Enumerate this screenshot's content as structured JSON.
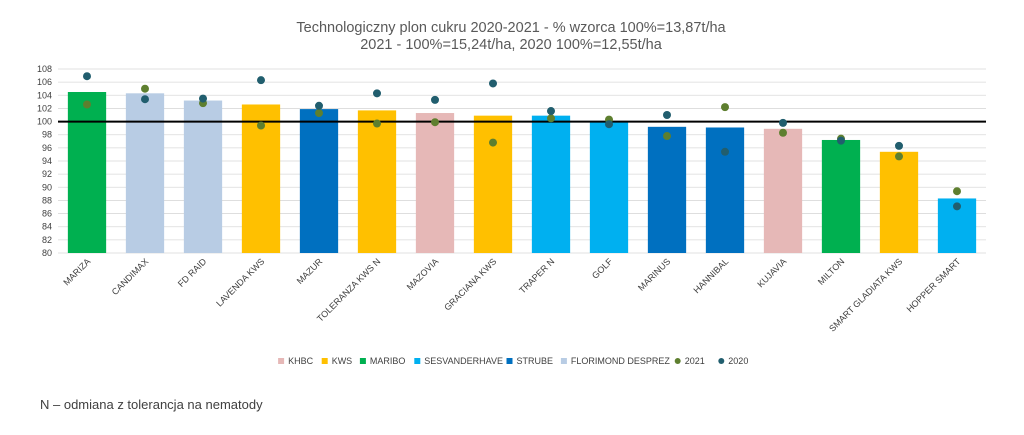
{
  "chart_data": {
    "type": "bar",
    "title_lines": [
      "Technologiczny plon cukru 2020-2021 - % wzorca 100%=13,87t/ha",
      "2021 - 100%=15,24t/ha, 2020 100%=12,55t/ha"
    ],
    "ylim": [
      80,
      108
    ],
    "yticks": [
      80,
      82,
      84,
      86,
      88,
      90,
      92,
      94,
      96,
      98,
      100,
      102,
      104,
      106,
      108
    ],
    "grid": true,
    "reference_line": 100,
    "categories": [
      "MARIZA",
      "CANDIMAX",
      "FD RAID",
      "LAVENDA KWS",
      "MAZUR",
      "TOLERANZA KWS N",
      "MAZOVIA",
      "GRACIANA KWS",
      "TRAPER N",
      "GOLF",
      "MARINUS",
      "HANNIBAL",
      "KUJAVIA",
      "MILTON",
      "SMART GLADIATA KWS",
      "HOPPER SMART"
    ],
    "values": [
      104.5,
      104.3,
      103.2,
      102.6,
      101.9,
      101.7,
      101.3,
      100.9,
      100.9,
      100.1,
      99.2,
      99.1,
      98.9,
      97.2,
      95.4,
      88.3
    ],
    "bar_groups": [
      "MARIBO",
      "FLORIMOND DESPREZ",
      "FLORIMOND DESPREZ",
      "KWS",
      "STRUBE",
      "KWS",
      "KHBC",
      "KWS",
      "SESVANDERHAVE",
      "SESVANDERHAVE",
      "STRUBE",
      "STRUBE",
      "KHBC",
      "MARIBO",
      "KWS",
      "SESVANDERHAVE"
    ],
    "series": [
      {
        "name": "2021",
        "values": [
          102.6,
          105.0,
          102.8,
          99.4,
          101.3,
          99.7,
          99.9,
          96.8,
          100.5,
          100.3,
          97.8,
          102.2,
          98.3,
          97.4,
          94.7,
          89.4
        ]
      },
      {
        "name": "2020",
        "values": [
          106.9,
          103.4,
          103.5,
          106.3,
          102.4,
          104.3,
          103.3,
          105.8,
          101.6,
          99.6,
          101.0,
          95.4,
          99.8,
          97.1,
          96.3,
          87.1
        ]
      }
    ],
    "legend": {
      "position": "bottom",
      "entries": [
        {
          "name": "KHBC",
          "kind": "bar",
          "color": "#E6B8B7"
        },
        {
          "name": "KWS",
          "kind": "bar",
          "color": "#FFC000"
        },
        {
          "name": "MARIBO",
          "kind": "bar",
          "color": "#00B050"
        },
        {
          "name": "SESVANDERHAVE",
          "kind": "bar",
          "color": "#00B0F0"
        },
        {
          "name": "STRUBE",
          "kind": "bar",
          "color": "#0070C0"
        },
        {
          "name": "FLORIMOND DESPREZ",
          "kind": "bar",
          "color": "#B8CCE4"
        },
        {
          "name": "2021",
          "kind": "dot",
          "color": "#5E7F2F"
        },
        {
          "name": "2020",
          "kind": "dot",
          "color": "#215E6E"
        }
      ]
    }
  },
  "footnote": "N – odmiana z tolerancja na nematody"
}
